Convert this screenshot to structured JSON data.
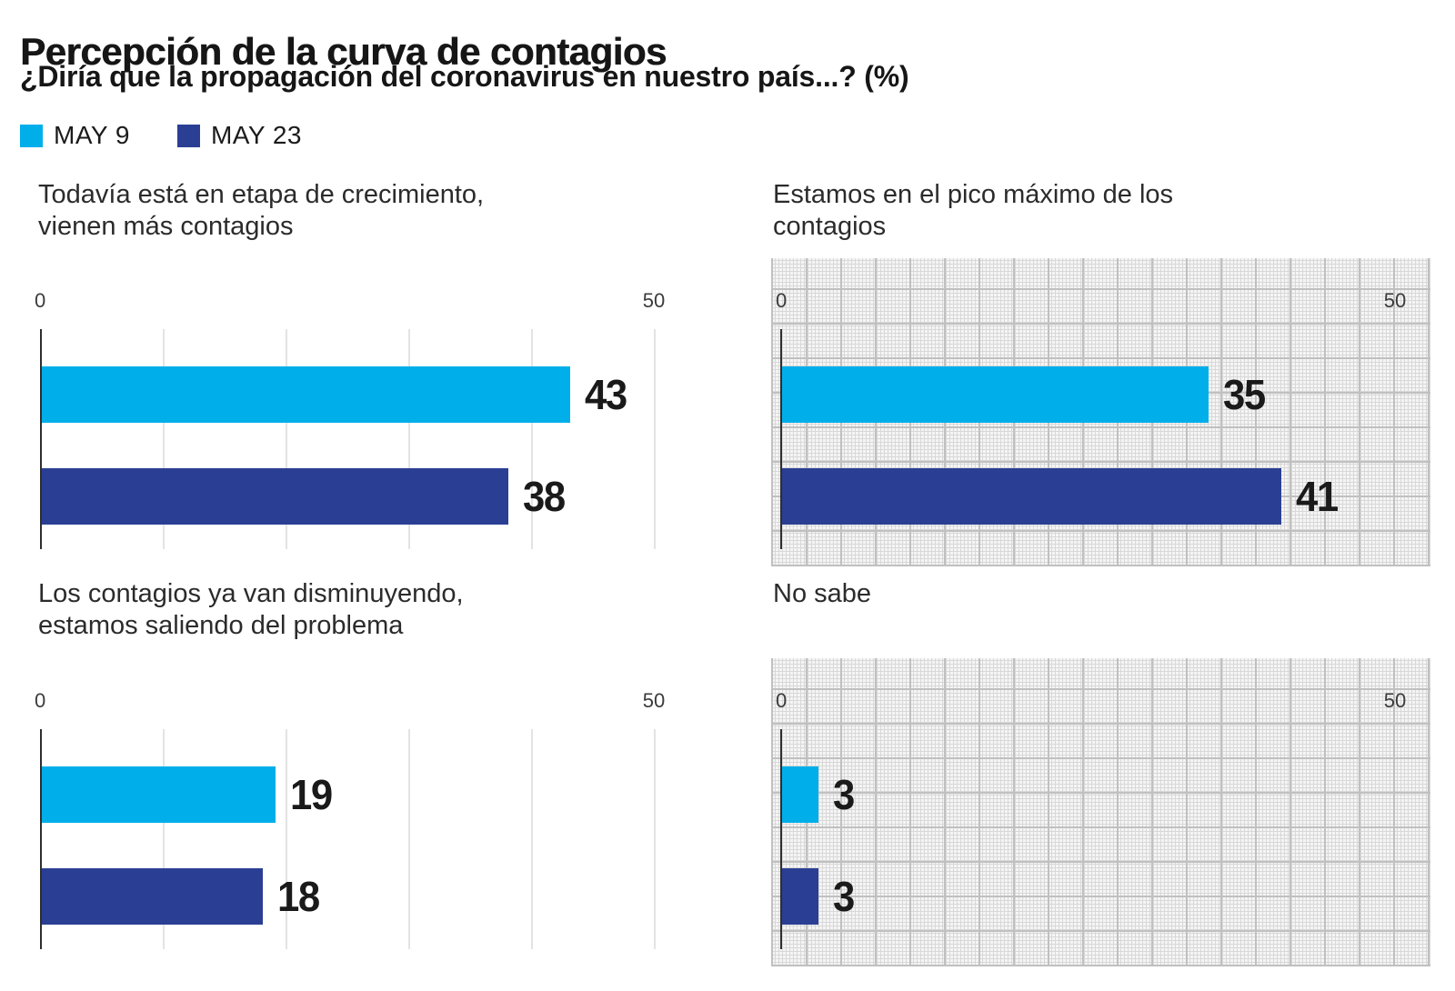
{
  "header": {
    "title": "Percepción de la curva de contagios",
    "subtitle": "¿Diría que la propagación del coronavirus en nuestro país...? (%)"
  },
  "legend": [
    {
      "label": "MAY 9",
      "color": "#00AEEA"
    },
    {
      "label": "MAY 23",
      "color": "#2A3F94"
    }
  ],
  "colors": {
    "series_may9": "#00AEEA",
    "series_may23": "#2A3F94",
    "axis_line": "#2e2e2e",
    "gridline_plain": "#e3e3e3",
    "gridpaper_major": "#c0c0c0",
    "gridpaper_fine": "#d8d8d8",
    "text": "#161616"
  },
  "chart_data": [
    {
      "type": "bar",
      "title": "Todavía está en etapa de crecimiento, vienen más contagios",
      "title_lines": [
        "Todavía está en etapa de crecimiento,",
        "vienen más contagios"
      ],
      "categories": [
        "MAY 9",
        "MAY 23"
      ],
      "values": [
        43,
        38
      ],
      "xlim": [
        0,
        50
      ],
      "tick_labels": [
        "0",
        "50"
      ],
      "background": "plain",
      "legend_position": "top-shared",
      "grid": "vertical-every-10"
    },
    {
      "type": "bar",
      "title": "Estamos en el pico máximo de los contagios",
      "title_lines": [
        "Estamos en el pico máximo de los",
        "contagios"
      ],
      "categories": [
        "MAY 9",
        "MAY 23"
      ],
      "values": [
        35,
        41
      ],
      "xlim": [
        0,
        50
      ],
      "tick_labels": [
        "0",
        "50"
      ],
      "background": "graph-paper",
      "legend_position": "top-shared",
      "grid": "decorative-graph-paper"
    },
    {
      "type": "bar",
      "title": "Los contagios ya van disminuyendo, estamos saliendo del problema",
      "title_lines": [
        "Los contagios ya van disminuyendo,",
        "estamos saliendo del problema"
      ],
      "categories": [
        "MAY 9",
        "MAY 23"
      ],
      "values": [
        19,
        18
      ],
      "xlim": [
        0,
        50
      ],
      "tick_labels": [
        "0",
        "50"
      ],
      "background": "plain",
      "legend_position": "top-shared",
      "grid": "vertical-every-10"
    },
    {
      "type": "bar",
      "title": "No sabe",
      "title_lines": [
        "No sabe"
      ],
      "categories": [
        "MAY 9",
        "MAY 23"
      ],
      "values": [
        3,
        3
      ],
      "xlim": [
        0,
        50
      ],
      "tick_labels": [
        "0",
        "50"
      ],
      "background": "graph-paper",
      "legend_position": "top-shared",
      "grid": "decorative-graph-paper"
    }
  ]
}
